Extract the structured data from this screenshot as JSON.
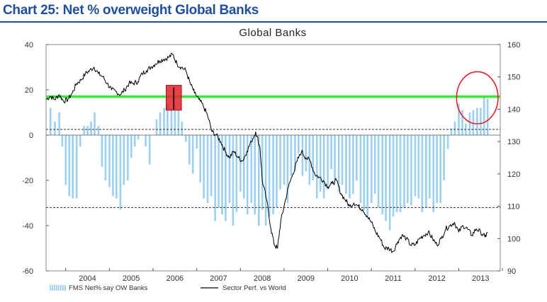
{
  "header": {
    "title": "Chart 25: Net % overweight Global Banks"
  },
  "colors": {
    "title": "#1f4e9b",
    "bars": "#9ccff0",
    "line": "#000000",
    "threshold": "#33ee33",
    "highlight_box": "#e3202a",
    "circle": "#e3202a"
  },
  "chart_data": {
    "type": "bar",
    "title": "Global Banks",
    "x_range": [
      2003.55,
      2013.95
    ],
    "x_ticks": [
      "2004",
      "2005",
      "2006",
      "2007",
      "2008",
      "2009",
      "2010",
      "2011",
      "2012",
      "2013"
    ],
    "left_axis": {
      "range": [
        -60,
        40
      ],
      "ticks": [
        "40",
        "20",
        "0",
        "-20",
        "-40",
        "-60"
      ]
    },
    "right_axis": {
      "range": [
        90,
        160
      ],
      "ticks": [
        "160",
        "150",
        "140",
        "130",
        "120",
        "110",
        "100",
        "90"
      ]
    },
    "reference_lines": {
      "dashed_upper": 2.5,
      "dashed_lower": -32,
      "green_threshold": 17
    },
    "series": [
      {
        "name": "FMS Net% say OW Banks",
        "type": "bar",
        "axis": "left",
        "points": [
          [
            2003.65,
            12
          ],
          [
            2003.75,
            6
          ],
          [
            2003.85,
            10
          ],
          [
            2003.92,
            -5
          ],
          [
            2004.0,
            -22
          ],
          [
            2004.08,
            -27
          ],
          [
            2004.16,
            -28
          ],
          [
            2004.25,
            -28
          ],
          [
            2004.33,
            -5
          ],
          [
            2004.42,
            4
          ],
          [
            2004.5,
            4
          ],
          [
            2004.58,
            6
          ],
          [
            2004.66,
            10
          ],
          [
            2004.75,
            4
          ],
          [
            2004.83,
            -14
          ],
          [
            2004.91,
            -20
          ],
          [
            2005.0,
            -23
          ],
          [
            2005.08,
            -27
          ],
          [
            2005.16,
            -28
          ],
          [
            2005.25,
            -33
          ],
          [
            2005.33,
            -22
          ],
          [
            2005.42,
            -20
          ],
          [
            2005.5,
            -10
          ],
          [
            2005.58,
            -5
          ],
          [
            2005.66,
            -2
          ],
          [
            2005.83,
            -5
          ],
          [
            2005.92,
            -13
          ],
          [
            2006.08,
            7
          ],
          [
            2006.16,
            10
          ],
          [
            2006.25,
            12
          ],
          [
            2006.33,
            14
          ],
          [
            2006.42,
            12
          ],
          [
            2006.5,
            13
          ],
          [
            2006.58,
            11
          ],
          [
            2006.66,
            6
          ],
          [
            2006.75,
            -3
          ],
          [
            2006.83,
            -13
          ],
          [
            2006.91,
            -17
          ],
          [
            2007.0,
            -6
          ],
          [
            2007.08,
            -21
          ],
          [
            2007.16,
            -28
          ],
          [
            2007.25,
            -30
          ],
          [
            2007.33,
            -27
          ],
          [
            2007.42,
            -38
          ],
          [
            2007.5,
            -32
          ],
          [
            2007.58,
            -35
          ],
          [
            2007.66,
            -38
          ],
          [
            2007.75,
            -30
          ],
          [
            2007.83,
            -40
          ],
          [
            2007.91,
            -34
          ],
          [
            2008.0,
            -25
          ],
          [
            2008.08,
            -28
          ],
          [
            2008.16,
            -35
          ],
          [
            2008.25,
            -30
          ],
          [
            2008.33,
            -35
          ],
          [
            2008.42,
            -40
          ],
          [
            2008.5,
            -33
          ],
          [
            2008.58,
            -40
          ],
          [
            2008.66,
            -36
          ],
          [
            2008.75,
            -35
          ],
          [
            2008.83,
            -32
          ],
          [
            2008.91,
            -24
          ],
          [
            2009.0,
            -22
          ],
          [
            2009.08,
            -30
          ],
          [
            2009.16,
            -18
          ],
          [
            2009.25,
            -16
          ],
          [
            2009.33,
            -8
          ],
          [
            2009.42,
            -18
          ],
          [
            2009.5,
            -16
          ],
          [
            2009.58,
            -22
          ],
          [
            2009.66,
            -20
          ],
          [
            2009.75,
            -28
          ],
          [
            2009.83,
            -25
          ],
          [
            2009.91,
            -28
          ],
          [
            2010.0,
            -24
          ],
          [
            2010.08,
            -15
          ],
          [
            2010.16,
            -20
          ],
          [
            2010.25,
            -25
          ],
          [
            2010.33,
            -22
          ],
          [
            2010.42,
            -26
          ],
          [
            2010.5,
            -28
          ],
          [
            2010.58,
            -26
          ],
          [
            2010.66,
            -20
          ],
          [
            2010.75,
            -30
          ],
          [
            2010.83,
            -33
          ],
          [
            2010.91,
            -36
          ],
          [
            2011.0,
            -30
          ],
          [
            2011.08,
            -26
          ],
          [
            2011.16,
            -32
          ],
          [
            2011.25,
            -35
          ],
          [
            2011.33,
            -38
          ],
          [
            2011.42,
            -42
          ],
          [
            2011.5,
            -36
          ],
          [
            2011.58,
            -34
          ],
          [
            2011.66,
            -34
          ],
          [
            2011.75,
            -32
          ],
          [
            2011.83,
            -30
          ],
          [
            2011.91,
            -31
          ],
          [
            2012.0,
            -27
          ],
          [
            2012.08,
            -28
          ],
          [
            2012.16,
            -34
          ],
          [
            2012.25,
            -32
          ],
          [
            2012.33,
            -28
          ],
          [
            2012.42,
            -34
          ],
          [
            2012.5,
            -30
          ],
          [
            2012.58,
            -30
          ],
          [
            2012.66,
            -20
          ],
          [
            2012.75,
            -6
          ],
          [
            2012.83,
            3
          ],
          [
            2012.91,
            6
          ],
          [
            2013.0,
            14
          ],
          [
            2013.08,
            11
          ],
          [
            2013.16,
            5
          ],
          [
            2013.25,
            10
          ],
          [
            2013.33,
            11
          ],
          [
            2013.42,
            12
          ],
          [
            2013.5,
            12
          ],
          [
            2013.58,
            17
          ],
          [
            2013.66,
            16
          ]
        ]
      },
      {
        "name": "Sector Perf. vs World",
        "type": "line",
        "axis": "right",
        "points": [
          [
            2003.55,
            143
          ],
          [
            2003.65,
            144
          ],
          [
            2003.75,
            143
          ],
          [
            2003.85,
            144.5
          ],
          [
            2003.95,
            142.5
          ],
          [
            2004.05,
            143
          ],
          [
            2004.15,
            145
          ],
          [
            2004.25,
            148
          ],
          [
            2004.35,
            149
          ],
          [
            2004.45,
            151
          ],
          [
            2004.55,
            152
          ],
          [
            2004.65,
            153
          ],
          [
            2004.75,
            151
          ],
          [
            2004.85,
            150
          ],
          [
            2004.95,
            148
          ],
          [
            2005.05,
            146
          ],
          [
            2005.15,
            145.5
          ],
          [
            2005.25,
            144.5
          ],
          [
            2005.35,
            146
          ],
          [
            2005.45,
            148
          ],
          [
            2005.55,
            148
          ],
          [
            2005.65,
            148.5
          ],
          [
            2005.75,
            151
          ],
          [
            2005.85,
            152
          ],
          [
            2005.95,
            153
          ],
          [
            2006.05,
            154
          ],
          [
            2006.15,
            155
          ],
          [
            2006.25,
            155.5
          ],
          [
            2006.35,
            156
          ],
          [
            2006.45,
            157
          ],
          [
            2006.55,
            154
          ],
          [
            2006.65,
            153
          ],
          [
            2006.75,
            152
          ],
          [
            2006.85,
            148
          ],
          [
            2006.95,
            145
          ],
          [
            2007.05,
            143
          ],
          [
            2007.15,
            141
          ],
          [
            2007.25,
            138
          ],
          [
            2007.35,
            133
          ],
          [
            2007.45,
            132
          ],
          [
            2007.55,
            130
          ],
          [
            2007.65,
            127
          ],
          [
            2007.75,
            125
          ],
          [
            2007.85,
            127
          ],
          [
            2007.95,
            125
          ],
          [
            2008.05,
            124
          ],
          [
            2008.15,
            127
          ],
          [
            2008.25,
            130
          ],
          [
            2008.35,
            133
          ],
          [
            2008.45,
            128
          ],
          [
            2008.5,
            118
          ],
          [
            2008.6,
            112
          ],
          [
            2008.7,
            103
          ],
          [
            2008.78,
            98
          ],
          [
            2008.85,
            97
          ],
          [
            2008.92,
            105
          ],
          [
            2009.0,
            110
          ],
          [
            2009.1,
            116
          ],
          [
            2009.2,
            120
          ],
          [
            2009.3,
            124
          ],
          [
            2009.4,
            127
          ],
          [
            2009.5,
            125
          ],
          [
            2009.6,
            124
          ],
          [
            2009.7,
            120
          ],
          [
            2009.8,
            119
          ],
          [
            2009.9,
            118
          ],
          [
            2010.0,
            116
          ],
          [
            2010.1,
            117
          ],
          [
            2010.2,
            118
          ],
          [
            2010.3,
            114
          ],
          [
            2010.4,
            112
          ],
          [
            2010.5,
            110
          ],
          [
            2010.6,
            111
          ],
          [
            2010.7,
            110
          ],
          [
            2010.8,
            109
          ],
          [
            2010.9,
            107
          ],
          [
            2011.0,
            105
          ],
          [
            2011.1,
            102
          ],
          [
            2011.2,
            100
          ],
          [
            2011.3,
            97
          ],
          [
            2011.4,
            97
          ],
          [
            2011.5,
            96
          ],
          [
            2011.6,
            99
          ],
          [
            2011.7,
            101
          ],
          [
            2011.8,
            100
          ],
          [
            2011.9,
            98
          ],
          [
            2012.0,
            98
          ],
          [
            2012.1,
            100
          ],
          [
            2012.2,
            101
          ],
          [
            2012.3,
            102
          ],
          [
            2012.4,
            100
          ],
          [
            2012.5,
            98
          ],
          [
            2012.6,
            100
          ],
          [
            2012.7,
            103
          ],
          [
            2012.8,
            104
          ],
          [
            2012.9,
            105
          ],
          [
            2013.0,
            102
          ],
          [
            2013.1,
            104
          ],
          [
            2013.2,
            103
          ],
          [
            2013.3,
            101
          ],
          [
            2013.4,
            103
          ],
          [
            2013.5,
            102
          ],
          [
            2013.6,
            100.5
          ],
          [
            2013.66,
            102
          ]
        ]
      }
    ],
    "annotations": {
      "highlight_box": {
        "x_range": [
          2006.3,
          2006.65
        ],
        "y_range": [
          11,
          22
        ]
      },
      "circle": {
        "x_range": [
          2012.95,
          2013.9
        ],
        "y_range": [
          5,
          28
        ]
      }
    },
    "legend": {
      "placement": "bottom-left"
    }
  }
}
